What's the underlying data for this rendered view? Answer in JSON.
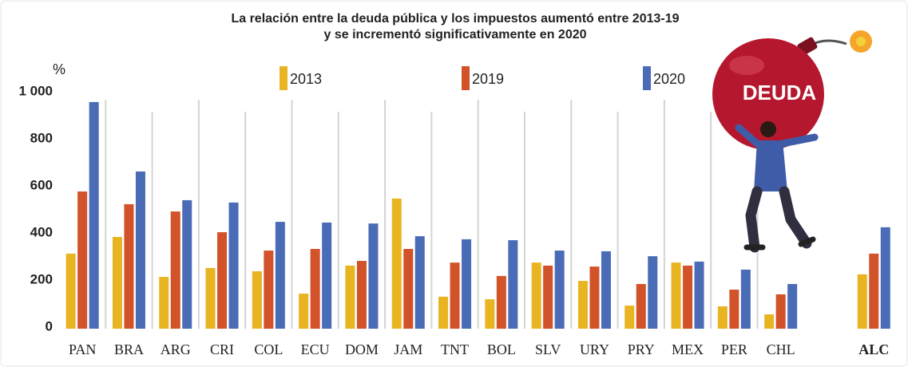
{
  "chart_data": {
    "type": "bar",
    "title": [
      "La relación entre la deuda pública y los impuestos aumentó entre 2013-19",
      "y se incrementó significativamente en 2020"
    ],
    "y_label": "%",
    "annotations": [
      "DEUDA"
    ],
    "categories": [
      "PAN",
      "BRA",
      "ARG",
      "CRI",
      "COL",
      "ECU",
      "DOM",
      "JAM",
      "TNT",
      "BOL",
      "SLV",
      "URY",
      "PRY",
      "MEX",
      "PER",
      "CHL",
      null,
      "ALC"
    ],
    "series": [
      {
        "name": "2013",
        "color": "#e8b422",
        "values": [
          319,
          390,
          220,
          258,
          244,
          149,
          268,
          553,
          136,
          125,
          281,
          203,
          98,
          281,
          95,
          61,
          null,
          231
        ]
      },
      {
        "name": "2019",
        "color": "#d2522a",
        "values": [
          583,
          529,
          498,
          410,
          332,
          339,
          288,
          339,
          281,
          224,
          268,
          264,
          190,
          268,
          166,
          146,
          null,
          319
        ]
      },
      {
        "name": "2020",
        "color": "#4a6bb5",
        "values": [
          963,
          668,
          546,
          536,
          454,
          451,
          447,
          393,
          380,
          376,
          332,
          329,
          308,
          285,
          251,
          190,
          null,
          431
        ]
      }
    ],
    "ylim": [
      0,
      1000
    ],
    "yticks": [
      0,
      200,
      400,
      600,
      800,
      {
        "value": 1000,
        "label": "1 000"
      }
    ],
    "legend": "top"
  }
}
